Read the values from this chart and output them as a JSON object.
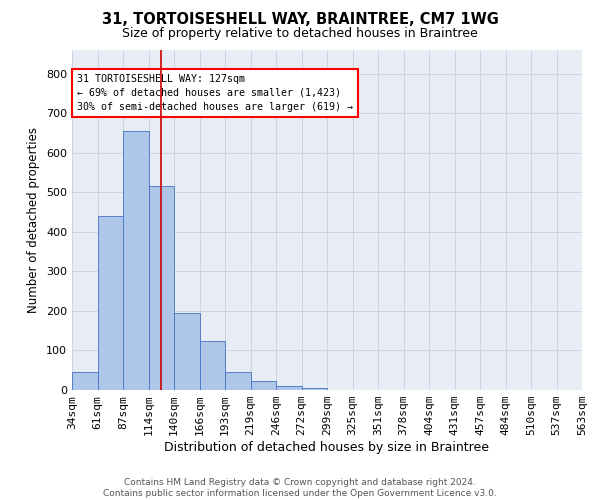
{
  "title1": "31, TORTOISESHELL WAY, BRAINTREE, CM7 1WG",
  "title2": "Size of property relative to detached houses in Braintree",
  "xlabel": "Distribution of detached houses by size in Braintree",
  "ylabel": "Number of detached properties",
  "annotation_line1": "31 TORTOISESHELL WAY: 127sqm",
  "annotation_line2": "← 69% of detached houses are smaller (1,423)",
  "annotation_line3": "30% of semi-detached houses are larger (619) →",
  "footer1": "Contains HM Land Registry data © Crown copyright and database right 2024.",
  "footer2": "Contains public sector information licensed under the Open Government Licence v3.0.",
  "bin_labels": [
    "34sqm",
    "61sqm",
    "87sqm",
    "114sqm",
    "140sqm",
    "166sqm",
    "193sqm",
    "219sqm",
    "246sqm",
    "272sqm",
    "299sqm",
    "325sqm",
    "351sqm",
    "378sqm",
    "404sqm",
    "431sqm",
    "457sqm",
    "484sqm",
    "510sqm",
    "537sqm",
    "563sqm"
  ],
  "bar_values": [
    45,
    440,
    655,
    515,
    195,
    125,
    45,
    22,
    9,
    5,
    0,
    0,
    0,
    0,
    0,
    0,
    0,
    0,
    0,
    0
  ],
  "bar_color": "#aec6e8",
  "bar_edge_color": "#4472c4",
  "grid_color": "#c8d0dc",
  "bg_color": "#e8ecf4",
  "red_line_color": "#cc0000",
  "ylim": [
    0,
    860
  ],
  "yticks": [
    0,
    100,
    200,
    300,
    400,
    500,
    600,
    700,
    800
  ],
  "title1_fontsize": 10.5,
  "title2_fontsize": 9,
  "xlabel_fontsize": 9,
  "ylabel_fontsize": 8.5,
  "tick_fontsize": 8,
  "footer_fontsize": 6.5
}
